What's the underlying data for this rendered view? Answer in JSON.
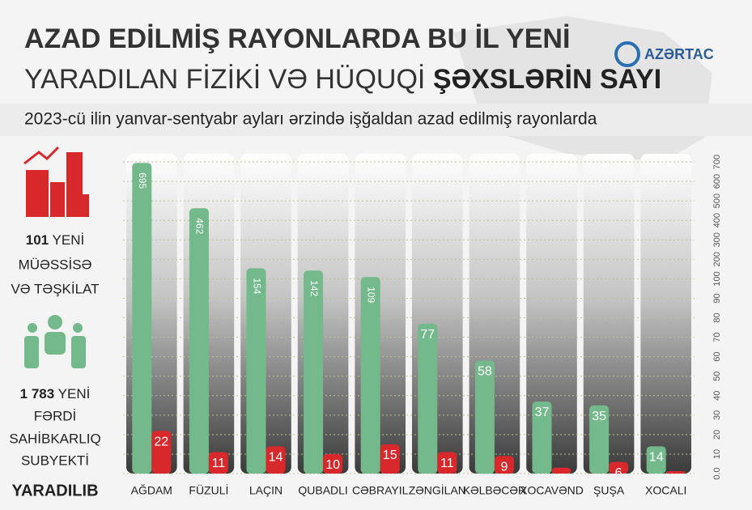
{
  "header": {
    "title_line1": "AZAD EDİLMİŞ RAYONLARDA BU İL YENİ",
    "title_line2": "YARADILAN FİZİKİ VƏ HÜQUQİ",
    "title_bold": "ŞƏXSLƏRİN SAYI",
    "subtitle": "2023-cü ilin yanvar-sentyabr ayları ərzində işğaldan azad edilmiş rayonlarda",
    "logo": "AZƏRTAC"
  },
  "side": {
    "org_count": "101",
    "org_text": [
      "YENİ",
      "MÜƏSSİSƏ",
      "VƏ TƏŞKİLAT"
    ],
    "person_count": "1 783",
    "person_text": [
      "YENİ",
      "FƏRDİ",
      "SAHİBKARLIQ",
      "SUBYEKTİ"
    ],
    "footer": "YARADILIB"
  },
  "chart_data": {
    "type": "bar",
    "categories": [
      "AĞDAM",
      "FÜZULİ",
      "LAÇIN",
      "QUBADLI",
      "CƏBRAYIL",
      "ZƏNGİLAN",
      "KƏLBƏCƏR",
      "XOCAVƏND",
      "ŞUŞA",
      "XOCALI"
    ],
    "series": [
      {
        "color": "#74b98b",
        "values": [
          695,
          462,
          154,
          142,
          109,
          77,
          58,
          37,
          35,
          14
        ]
      },
      {
        "color": "#d8282c",
        "values": [
          22,
          11,
          14,
          10,
          15,
          11,
          9,
          3,
          6,
          0
        ]
      }
    ],
    "ylim": [
      0,
      700
    ],
    "yticks": [
      {
        "value": 0,
        "label": "0.0"
      },
      10,
      20,
      30,
      40,
      50,
      60,
      70,
      80,
      90,
      100,
      200,
      300,
      400,
      500,
      600,
      700
    ],
    "grid": true
  }
}
